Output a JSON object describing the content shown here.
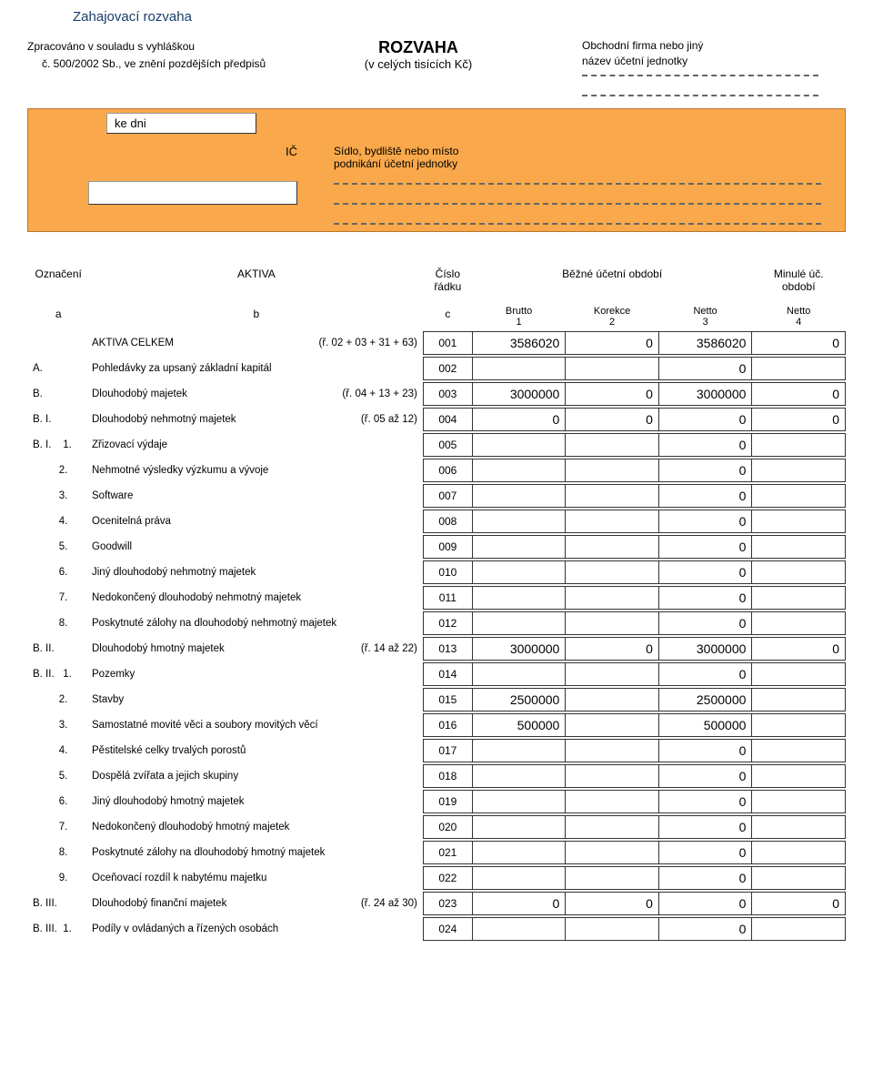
{
  "title": "Zahajovací rozvaha",
  "header": {
    "left_line1": "Zpracováno v souladu s vyhláškou",
    "left_line2": "č. 500/2002 Sb., ve znění pozdějších předpisů",
    "center_title": "ROZVAHA",
    "center_sub": "(v celých tisících Kč)",
    "right_line1": "Obchodní firma nebo jiný",
    "right_line2": "název účetní jednotky",
    "ke_dni": "ke dni",
    "ic_label": "IČ",
    "ic_right1": "Sídlo, bydliště nebo místo",
    "ic_right2": "podnikání účetní jednotky"
  },
  "table_header": {
    "oznaceni": "Označení",
    "aktiva": "AKTIVA",
    "cislo": "Číslo",
    "radku": "řádku",
    "bezne": "Běžné účetní období",
    "minule1": "Minulé úč.",
    "minule2": "období",
    "brutto": "Brutto",
    "korekce": "Korekce",
    "netto": "Netto",
    "a": "a",
    "b": "b",
    "c": "c",
    "n1": "1",
    "n2": "2",
    "n3": "3",
    "n4": "4"
  },
  "rows": [
    {
      "prefix": "",
      "text": "AKTIVA CELKEM",
      "suffix": "(ř. 02 + 03 + 31 + 63)",
      "code": "001",
      "v1": "3586020",
      "v2": "0",
      "v3": "3586020",
      "v4": "0"
    },
    {
      "prefix": "A.",
      "text": "Pohledávky za upsaný základní kapitál",
      "suffix": "",
      "code": "002",
      "v1": "",
      "v2": "",
      "v3": "0",
      "v4": ""
    },
    {
      "prefix": "B.",
      "text": "Dlouhodobý majetek",
      "suffix": "(ř. 04 + 13 + 23)",
      "code": "003",
      "v1": "3000000",
      "v2": "0",
      "v3": "3000000",
      "v4": "0"
    },
    {
      "prefix": "B. I.",
      "text": "Dlouhodobý nehmotný majetek",
      "suffix": "(ř. 05 až 12)",
      "code": "004",
      "v1": "0",
      "v2": "0",
      "v3": "0",
      "v4": "0"
    },
    {
      "prefix": "B. I.    1.",
      "text": "Zřizovací výdaje",
      "suffix": "",
      "code": "005",
      "v1": "",
      "v2": "",
      "v3": "0",
      "v4": ""
    },
    {
      "prefix": "         2.",
      "text": "Nehmotné výsledky výzkumu a vývoje",
      "suffix": "",
      "code": "006",
      "v1": "",
      "v2": "",
      "v3": "0",
      "v4": ""
    },
    {
      "prefix": "         3.",
      "text": "Software",
      "suffix": "",
      "code": "007",
      "v1": "",
      "v2": "",
      "v3": "0",
      "v4": ""
    },
    {
      "prefix": "         4.",
      "text": "Ocenitelná práva",
      "suffix": "",
      "code": "008",
      "v1": "",
      "v2": "",
      "v3": "0",
      "v4": ""
    },
    {
      "prefix": "         5.",
      "text": "Goodwill",
      "suffix": "",
      "code": "009",
      "v1": "",
      "v2": "",
      "v3": "0",
      "v4": ""
    },
    {
      "prefix": "         6.",
      "text": "Jiný dlouhodobý nehmotný majetek",
      "suffix": "",
      "code": "010",
      "v1": "",
      "v2": "",
      "v3": "0",
      "v4": ""
    },
    {
      "prefix": "         7.",
      "text": "Nedokončený dlouhodobý nehmotný majetek",
      "suffix": "",
      "code": "011",
      "v1": "",
      "v2": "",
      "v3": "0",
      "v4": ""
    },
    {
      "prefix": "         8.",
      "text": "Poskytnuté zálohy na dlouhodobý nehmotný majetek",
      "suffix": "",
      "code": "012",
      "v1": "",
      "v2": "",
      "v3": "0",
      "v4": ""
    },
    {
      "prefix": "B. II.",
      "text": "Dlouhodobý hmotný majetek",
      "suffix": "(ř. 14 až 22)",
      "code": "013",
      "v1": "3000000",
      "v2": "0",
      "v3": "3000000",
      "v4": "0"
    },
    {
      "prefix": "B. II.   1.",
      "text": "Pozemky",
      "suffix": "",
      "code": "014",
      "v1": "",
      "v2": "",
      "v3": "0",
      "v4": ""
    },
    {
      "prefix": "         2.",
      "text": "Stavby",
      "suffix": "",
      "code": "015",
      "v1": "2500000",
      "v2": "",
      "v3": "2500000",
      "v4": ""
    },
    {
      "prefix": "         3.",
      "text": "Samostatné movité věci a soubory movitých věcí",
      "suffix": "",
      "code": "016",
      "v1": "500000",
      "v2": "",
      "v3": "500000",
      "v4": ""
    },
    {
      "prefix": "         4.",
      "text": "Pěstitelské celky trvalých porostů",
      "suffix": "",
      "code": "017",
      "v1": "",
      "v2": "",
      "v3": "0",
      "v4": ""
    },
    {
      "prefix": "         5.",
      "text": "Dospělá zvířata a jejich skupiny",
      "suffix": "",
      "code": "018",
      "v1": "",
      "v2": "",
      "v3": "0",
      "v4": ""
    },
    {
      "prefix": "         6.",
      "text": "Jiný dlouhodobý hmotný majetek",
      "suffix": "",
      "code": "019",
      "v1": "",
      "v2": "",
      "v3": "0",
      "v4": ""
    },
    {
      "prefix": "         7.",
      "text": "Nedokončený dlouhodobý hmotný majetek",
      "suffix": "",
      "code": "020",
      "v1": "",
      "v2": "",
      "v3": "0",
      "v4": ""
    },
    {
      "prefix": "         8.",
      "text": "Poskytnuté zálohy na dlouhodobý hmotný majetek",
      "suffix": "",
      "code": "021",
      "v1": "",
      "v2": "",
      "v3": "0",
      "v4": ""
    },
    {
      "prefix": "         9.",
      "text": "Oceňovací rozdíl k nabytému majetku",
      "suffix": "",
      "code": "022",
      "v1": "",
      "v2": "",
      "v3": "0",
      "v4": ""
    },
    {
      "prefix": "B. III.",
      "text": "Dlouhodobý finanční majetek",
      "suffix": "(ř. 24 až 30)",
      "code": "023",
      "v1": "0",
      "v2": "0",
      "v3": "0",
      "v4": "0"
    },
    {
      "prefix": "B. III.  1.",
      "text": "Podíly v ovládaných a řízených osobách",
      "suffix": "",
      "code": "024",
      "v1": "",
      "v2": "",
      "v3": "0",
      "v4": ""
    }
  ],
  "colors": {
    "orange": "#f9a94b",
    "orange_border": "#b8762f",
    "text_blue": "#1a3d6b"
  }
}
